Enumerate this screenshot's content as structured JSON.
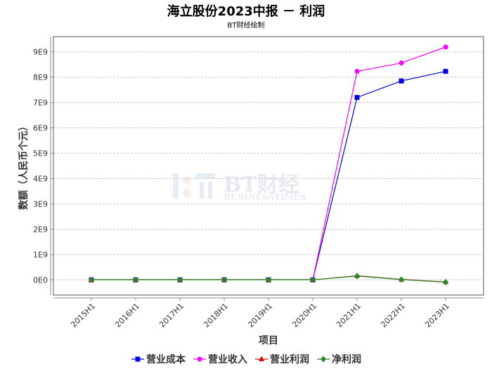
{
  "header": {
    "title": "海立股份2023中报 － 利润",
    "subtitle": "BT财经绘制"
  },
  "watermark": {
    "main": "BT财经",
    "sub": "BUSINESSTIMES"
  },
  "colors": {
    "grid": "#c8c8c8",
    "axis": "#888888",
    "plot_border": "#555555"
  },
  "chart_data": {
    "type": "line",
    "xlabel": "项目",
    "ylabel": "数额（人民币个元）",
    "categories": [
      "2015H1",
      "2016H1",
      "2017H1",
      "2018H1",
      "2019H1",
      "2020H1",
      "2021H1",
      "2022H1",
      "2023H1"
    ],
    "ylim": [
      -600000000,
      9600000000
    ],
    "yticks": [
      0,
      1000000000,
      2000000000,
      3000000000,
      4000000000,
      5000000000,
      6000000000,
      7000000000,
      8000000000,
      9000000000
    ],
    "ytick_labels": [
      "0E0",
      "1E9",
      "2E9",
      "3E9",
      "4E9",
      "5E9",
      "6E9",
      "7E9",
      "8E9",
      "9E9"
    ],
    "grid": true,
    "legend_position": "bottom",
    "series": [
      {
        "name": "营业成本",
        "color": "#0000ee",
        "marker": "square",
        "values": [
          0,
          0,
          0,
          0,
          0,
          0,
          7200000000,
          7850000000,
          8230000000
        ]
      },
      {
        "name": "营业收入",
        "color": "#ff00ff",
        "marker": "circle",
        "values": [
          0,
          0,
          0,
          0,
          0,
          0,
          8230000000,
          8560000000,
          9190000000
        ]
      },
      {
        "name": "营业利润",
        "color": "#dd0000",
        "marker": "triangle",
        "values": [
          0,
          0,
          0,
          0,
          0,
          0,
          160000000,
          20000000,
          -80000000
        ]
      },
      {
        "name": "净利润",
        "color": "#228b22",
        "marker": "diamond",
        "values": [
          0,
          0,
          0,
          0,
          0,
          0,
          150000000,
          10000000,
          -90000000
        ]
      }
    ]
  }
}
